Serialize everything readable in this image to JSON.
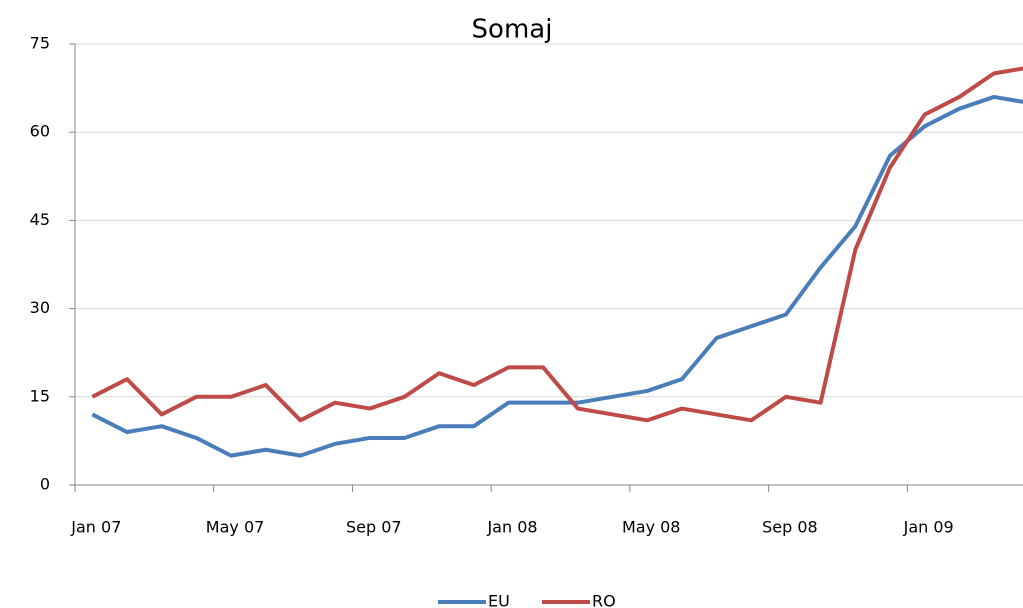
{
  "chart_data": {
    "type": "line",
    "title": "Somaj",
    "categories": [
      "Jan 07",
      null,
      null,
      null,
      "May 07",
      null,
      null,
      null,
      "Sep 07",
      null,
      null,
      null,
      "Jan 08",
      null,
      null,
      null,
      "May 08",
      null,
      null,
      null,
      "Sep 08",
      null,
      null,
      null,
      "Jan 09",
      null,
      null,
      null
    ],
    "series": [
      {
        "name": "EU",
        "color": "#4a7ebb",
        "values": [
          12,
          9,
          10,
          8,
          5,
          6,
          5,
          7,
          8,
          8,
          10,
          10,
          14,
          14,
          14,
          15,
          16,
          18,
          25,
          27,
          29,
          37,
          44,
          56,
          61,
          64,
          66,
          65
        ]
      },
      {
        "name": "RO",
        "color": "#be4b48",
        "values": [
          15,
          18,
          12,
          15,
          15,
          17,
          11,
          14,
          13,
          15,
          19,
          17,
          20,
          20,
          13,
          12,
          11,
          13,
          12,
          11,
          15,
          14,
          40,
          54,
          63,
          66,
          70,
          71
        ]
      }
    ],
    "ylim": [
      0,
      75
    ],
    "yticks": [
      0,
      15,
      30,
      45,
      60,
      75
    ],
    "grid": true,
    "legend": "bottom"
  }
}
